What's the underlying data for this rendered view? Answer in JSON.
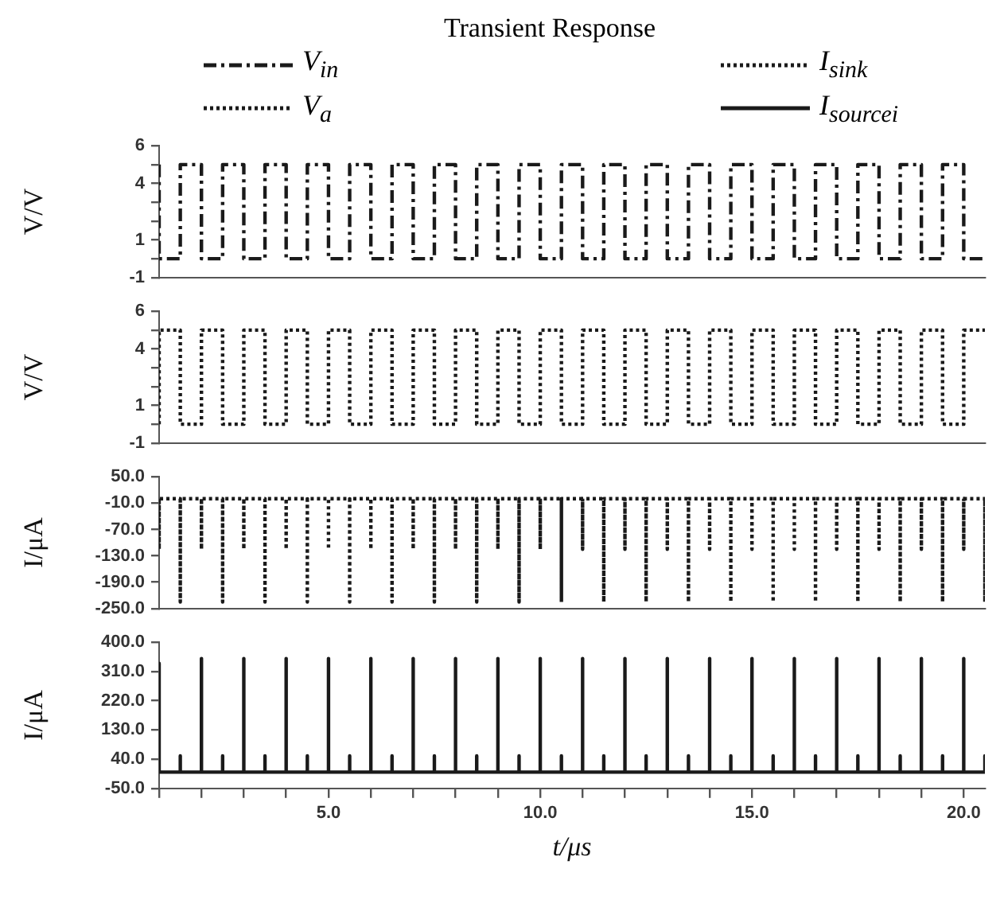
{
  "chart_data": [
    {
      "type": "line",
      "title": "Transient Response",
      "ylabel": "V/V",
      "legend": "top",
      "grid": false,
      "marker": "none",
      "tick_labels": "y",
      "xlim": [
        1,
        20.5
      ],
      "ylim": [
        -1,
        6
      ],
      "yticks": [
        -1,
        {
          "value": 0,
          "label": null
        },
        1,
        {
          "value": 2,
          "label": null
        },
        {
          "value": 3,
          "label": null
        },
        4,
        {
          "value": 5,
          "label": null
        },
        6
      ],
      "series": [
        {
          "name": "V$_{in}$",
          "type": "step",
          "color": "#1a1a1a",
          "line_style": "dashed",
          "x": [
            1,
            1.5,
            2,
            2.5,
            3,
            3.5,
            4,
            4.5,
            5,
            5.5,
            6,
            6.5,
            7,
            7.5,
            8,
            8.5,
            9,
            9.5,
            10,
            10.5,
            11,
            11.5,
            12,
            12.5,
            13,
            13.5,
            14,
            14.5,
            15,
            15.5,
            16,
            16.5,
            17,
            17.5,
            18,
            18.5,
            19,
            19.5,
            20,
            20.5
          ],
          "values": [
            5,
            0,
            5,
            0,
            5,
            0,
            5,
            0,
            5,
            0,
            5,
            0,
            5,
            0,
            5,
            0,
            5,
            0,
            5,
            0,
            5,
            0,
            5,
            0,
            5,
            0,
            5,
            0,
            5,
            0,
            5,
            0,
            5,
            0,
            5,
            0,
            5,
            0,
            5,
            0
          ]
        }
      ]
    },
    {
      "type": "line",
      "ylabel": "V/V",
      "grid": false,
      "marker": "none",
      "tick_labels": "y",
      "xlim": [
        1,
        20.5
      ],
      "ylim": [
        -1,
        6
      ],
      "yticks": [
        -1,
        {
          "value": 0,
          "label": null
        },
        1,
        {
          "value": 2,
          "label": null
        },
        {
          "value": 3,
          "label": null
        },
        4,
        {
          "value": 5,
          "label": null
        },
        6
      ],
      "series": [
        {
          "name": "V$_{a}$",
          "type": "step",
          "color": "#1a1a1a",
          "line_style": "dotted",
          "x": [
            1,
            1.5,
            2,
            2.5,
            3,
            3.5,
            4,
            4.5,
            5,
            5.5,
            6,
            6.5,
            7,
            7.5,
            8,
            8.5,
            9,
            9.5,
            10,
            10.5,
            11,
            11.5,
            12,
            12.5,
            13,
            13.5,
            14,
            14.5,
            15,
            15.5,
            16,
            16.5,
            17,
            17.5,
            18,
            18.5,
            19,
            19.5,
            20,
            20.5
          ],
          "values": [
            0,
            5,
            0,
            5,
            0,
            5,
            0,
            5,
            0,
            5,
            0,
            5,
            0,
            5,
            0,
            5,
            0,
            5,
            0,
            5,
            0,
            5,
            0,
            5,
            0,
            5,
            0,
            5,
            0,
            5,
            0,
            5,
            0,
            5,
            0,
            5,
            0,
            5,
            0,
            5
          ]
        }
      ]
    },
    {
      "type": "line",
      "ylabel": "I/μA",
      "grid": false,
      "marker": "none",
      "tick_labels": "y",
      "xlim": [
        1,
        20.5
      ],
      "ylim": [
        -250,
        50
      ],
      "yticks": [
        {
          "value": -250,
          "label": "-250.0"
        },
        {
          "value": -190,
          "label": "-190.0"
        },
        {
          "value": -130,
          "label": "-130.0"
        },
        {
          "value": -70,
          "label": "-70.0"
        },
        {
          "value": -10,
          "label": "-10.0"
        },
        {
          "value": 50,
          "label": "50.0"
        }
      ],
      "series": [
        {
          "name": "I$_{sink}$",
          "type": "line",
          "color": "#1a1a1a",
          "line_style": "dotted",
          "x": [
            1,
            1,
            1,
            1.5,
            1.5,
            1.5,
            2,
            2,
            2,
            2.5,
            2.5,
            2.5,
            3,
            3,
            3,
            3.5,
            3.5,
            3.5,
            4,
            4,
            4,
            4.5,
            4.5,
            4.5,
            5,
            5,
            5,
            5.5,
            5.5,
            5.5,
            6,
            6,
            6,
            6.5,
            6.5,
            6.5,
            7,
            7,
            7,
            7.5,
            7.5,
            7.5,
            8,
            8,
            8,
            8.5,
            8.5,
            8.5,
            9,
            9,
            9,
            9.5,
            9.5,
            9.5,
            10,
            10,
            10,
            10.5,
            10.5,
            10.5,
            11,
            11,
            11,
            11.5,
            11.5,
            11.5,
            12,
            12,
            12,
            12.5,
            12.5,
            12.5,
            13,
            13,
            13,
            13.5,
            13.5,
            13.5,
            14,
            14,
            14,
            14.5,
            14.5,
            14.5,
            15,
            15,
            15,
            15.5,
            15.5,
            15.5,
            16,
            16,
            16,
            16.5,
            16.5,
            16.5,
            17,
            17,
            17,
            17.5,
            17.5,
            17.5,
            18,
            18,
            18,
            18.5,
            18.5,
            18.5,
            19,
            19,
            19,
            19.5,
            19.5,
            19.5,
            20,
            20,
            20,
            20.5,
            20.5,
            20.5
          ],
          "values": [
            0,
            -115,
            0,
            0,
            -235,
            0,
            0,
            -115,
            0,
            0,
            -235,
            0,
            0,
            -115,
            0,
            0,
            -235,
            0,
            0,
            -115,
            0,
            0,
            -235,
            0,
            0,
            -115,
            0,
            0,
            -235,
            0,
            0,
            -115,
            0,
            0,
            -235,
            0,
            0,
            -115,
            0,
            0,
            -235,
            0,
            0,
            -115,
            0,
            0,
            -235,
            0,
            0,
            -115,
            0,
            0,
            -235,
            0,
            0,
            -115,
            0,
            0,
            -235,
            0,
            0,
            -115,
            0,
            0,
            -235,
            0,
            0,
            -115,
            0,
            0,
            -235,
            0,
            0,
            -115,
            0,
            0,
            -235,
            0,
            0,
            -115,
            0,
            0,
            -235,
            0,
            0,
            -115,
            0,
            0,
            -235,
            0,
            0,
            -115,
            0,
            0,
            -235,
            0,
            0,
            -115,
            0,
            0,
            -235,
            0,
            0,
            -115,
            0,
            0,
            -235,
            0,
            0,
            -115,
            0,
            0,
            -235,
            0,
            0,
            -115,
            0,
            0,
            -235,
            0
          ]
        }
      ]
    },
    {
      "type": "line",
      "ylabel": "I/μA",
      "xlabel": "t/μs",
      "grid": false,
      "marker": "none",
      "xlim": [
        1,
        20.5
      ],
      "xticks": [
        {
          "value": 1,
          "label": null
        },
        {
          "value": 2,
          "label": null
        },
        {
          "value": 3,
          "label": null
        },
        {
          "value": 4,
          "label": null
        },
        {
          "value": 5,
          "label": "5.0"
        },
        {
          "value": 6,
          "label": null
        },
        {
          "value": 7,
          "label": null
        },
        {
          "value": 8,
          "label": null
        },
        {
          "value": 9,
          "label": null
        },
        {
          "value": 10,
          "label": "10.0"
        },
        {
          "value": 11,
          "label": null
        },
        {
          "value": 12,
          "label": null
        },
        {
          "value": 13,
          "label": null
        },
        {
          "value": 14,
          "label": null
        },
        {
          "value": 15,
          "label": "15.0"
        },
        {
          "value": 16,
          "label": null
        },
        {
          "value": 17,
          "label": null
        },
        {
          "value": 18,
          "label": null
        },
        {
          "value": 19,
          "label": null
        },
        {
          "value": 20,
          "label": "20.0"
        }
      ],
      "ylim": [
        -50,
        400
      ],
      "yticks": [
        {
          "value": -50,
          "label": "-50.0"
        },
        {
          "value": 40,
          "label": "40.0"
        },
        {
          "value": 130,
          "label": "130.0"
        },
        {
          "value": 220,
          "label": "220.0"
        },
        {
          "value": 310,
          "label": "310.0"
        },
        {
          "value": 400,
          "label": "400.0"
        }
      ],
      "series": [
        {
          "name": "I$_{sourcei}$",
          "type": "line",
          "color": "#1a1a1a",
          "line_style": "solid",
          "x": [
            1,
            1,
            1,
            1.5,
            1.5,
            1.5,
            2,
            2,
            2,
            2.5,
            2.5,
            2.5,
            3,
            3,
            3,
            3.5,
            3.5,
            3.5,
            4,
            4,
            4,
            4.5,
            4.5,
            4.5,
            5,
            5,
            5,
            5.5,
            5.5,
            5.5,
            6,
            6,
            6,
            6.5,
            6.5,
            6.5,
            7,
            7,
            7,
            7.5,
            7.5,
            7.5,
            8,
            8,
            8,
            8.5,
            8.5,
            8.5,
            9,
            9,
            9,
            9.5,
            9.5,
            9.5,
            10,
            10,
            10,
            10.5,
            10.5,
            10.5,
            11,
            11,
            11,
            11.5,
            11.5,
            11.5,
            12,
            12,
            12,
            12.5,
            12.5,
            12.5,
            13,
            13,
            13,
            13.5,
            13.5,
            13.5,
            14,
            14,
            14,
            14.5,
            14.5,
            14.5,
            15,
            15,
            15,
            15.5,
            15.5,
            15.5,
            16,
            16,
            16,
            16.5,
            16.5,
            16.5,
            17,
            17,
            17,
            17.5,
            17.5,
            17.5,
            18,
            18,
            18,
            18.5,
            18.5,
            18.5,
            19,
            19,
            19,
            19.5,
            19.5,
            19.5,
            20,
            20,
            20,
            20.5,
            20.5,
            20.5
          ],
          "values": [
            0,
            335,
            0,
            0,
            50,
            0,
            0,
            350,
            0,
            0,
            50,
            0,
            0,
            350,
            0,
            0,
            50,
            0,
            0,
            350,
            0,
            0,
            50,
            0,
            0,
            350,
            0,
            0,
            50,
            0,
            0,
            350,
            0,
            0,
            50,
            0,
            0,
            350,
            0,
            0,
            50,
            0,
            0,
            350,
            0,
            0,
            50,
            0,
            0,
            350,
            0,
            0,
            50,
            0,
            0,
            350,
            0,
            0,
            50,
            0,
            0,
            350,
            0,
            0,
            50,
            0,
            0,
            350,
            0,
            0,
            50,
            0,
            0,
            350,
            0,
            0,
            50,
            0,
            0,
            350,
            0,
            0,
            50,
            0,
            0,
            350,
            0,
            0,
            50,
            0,
            0,
            350,
            0,
            0,
            50,
            0,
            0,
            350,
            0,
            0,
            50,
            0,
            0,
            350,
            0,
            0,
            50,
            0,
            0,
            350,
            0,
            0,
            50,
            0,
            0,
            350,
            0,
            0,
            50,
            0
          ]
        }
      ]
    }
  ]
}
